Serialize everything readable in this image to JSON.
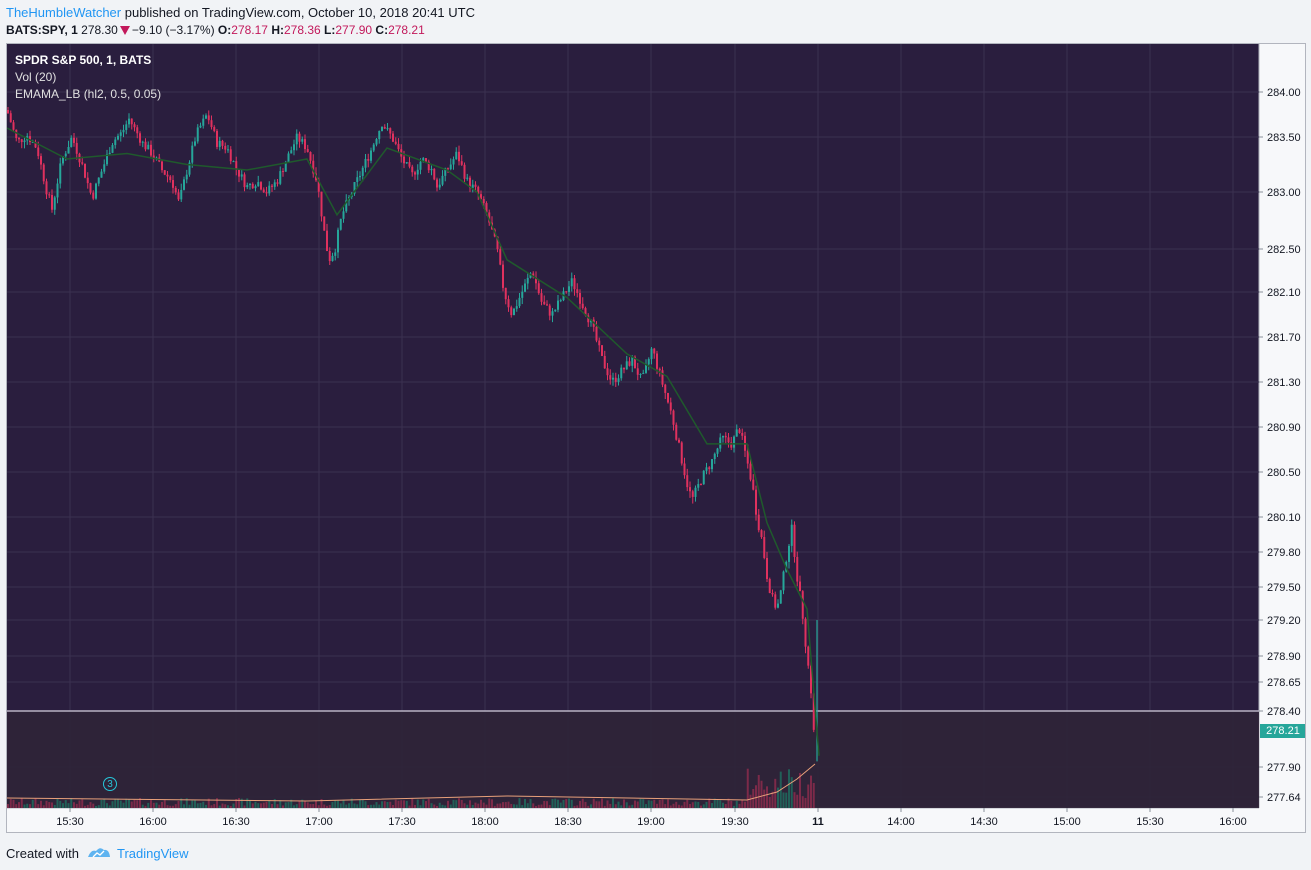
{
  "header": {
    "author": "TheHumbleWatcher",
    "published_text": " published on TradingView.com, October 10, 2018 20:41 UTC"
  },
  "quote": {
    "symbol": "BATS:SPY, 1",
    "last": "278.30",
    "change": "−9.10 (−3.17%)",
    "open_label": "O:",
    "open": "278.17",
    "high_label": "H:",
    "high": "278.36",
    "low_label": "L:",
    "low": "277.90",
    "close_label": "C:",
    "close": "278.21"
  },
  "legend": {
    "title": "SPDR S&P 500, 1, BATS",
    "volume": "Vol (20)",
    "indicator": "EMAMA_LB (hl2, 0.5, 0.05)"
  },
  "price_tag": "278.21",
  "event_marker": "3",
  "footer": {
    "created_with": "Created with",
    "brand": "TradingView"
  },
  "colors": {
    "background": "#2a1e3e",
    "grid": "#3b3150",
    "up": "#26a69a",
    "down": "#e0315e",
    "ema": "#1f5a2c",
    "axis_text": "#131722",
    "price_line": "#b9b3c4"
  },
  "chart_data": {
    "type": "candlestick",
    "y_ticks": [
      "284.00",
      "283.50",
      "283.00",
      "282.50",
      "282.10",
      "281.70",
      "281.30",
      "280.90",
      "280.50",
      "280.10",
      "279.80",
      "279.50",
      "279.20",
      "278.90",
      "278.65",
      "278.40",
      "277.90",
      "277.64"
    ],
    "x_ticks": [
      "15:30",
      "16:00",
      "16:30",
      "17:00",
      "17:30",
      "18:00",
      "18:30",
      "19:00",
      "19:30",
      "11",
      "14:00",
      "14:30",
      "15:00",
      "15:30",
      "16:00"
    ],
    "ylim": [
      277.62,
      284.15
    ],
    "price_line": 278.4,
    "series": [
      {
        "name": "SPY",
        "path": [
          [
            0,
            283.8
          ],
          [
            10,
            283.45
          ],
          [
            20,
            283.52
          ],
          [
            30,
            283.4
          ],
          [
            40,
            283.0
          ],
          [
            45,
            282.85
          ],
          [
            55,
            283.3
          ],
          [
            65,
            283.5
          ],
          [
            75,
            283.25
          ],
          [
            85,
            282.95
          ],
          [
            95,
            283.2
          ],
          [
            105,
            283.45
          ],
          [
            115,
            283.55
          ],
          [
            122,
            283.7
          ],
          [
            135,
            283.45
          ],
          [
            145,
            283.35
          ],
          [
            155,
            283.2
          ],
          [
            165,
            283.1
          ],
          [
            172,
            282.9
          ],
          [
            180,
            283.2
          ],
          [
            190,
            283.55
          ],
          [
            200,
            283.75
          ],
          [
            210,
            283.45
          ],
          [
            220,
            283.4
          ],
          [
            230,
            283.2
          ],
          [
            240,
            283.05
          ],
          [
            250,
            283.1
          ],
          [
            260,
            283.0
          ],
          [
            270,
            283.1
          ],
          [
            280,
            283.3
          ],
          [
            290,
            283.5
          ],
          [
            300,
            283.4
          ],
          [
            310,
            283.1
          ],
          [
            318,
            282.6
          ],
          [
            322,
            282.4
          ],
          [
            328,
            282.5
          ],
          [
            335,
            282.8
          ],
          [
            345,
            283.0
          ],
          [
            355,
            283.2
          ],
          [
            365,
            283.4
          ],
          [
            375,
            283.65
          ],
          [
            385,
            283.5
          ],
          [
            395,
            283.3
          ],
          [
            405,
            283.15
          ],
          [
            415,
            283.3
          ],
          [
            425,
            283.2
          ],
          [
            430,
            283.05
          ],
          [
            440,
            283.2
          ],
          [
            450,
            283.35
          ],
          [
            460,
            283.1
          ],
          [
            470,
            283.0
          ],
          [
            480,
            282.8
          ],
          [
            490,
            282.5
          ],
          [
            497,
            282.1
          ],
          [
            505,
            281.9
          ],
          [
            515,
            282.1
          ],
          [
            525,
            282.3
          ],
          [
            535,
            282.0
          ],
          [
            545,
            281.9
          ],
          [
            555,
            282.05
          ],
          [
            565,
            282.2
          ],
          [
            575,
            282.0
          ],
          [
            585,
            281.8
          ],
          [
            595,
            281.5
          ],
          [
            605,
            281.3
          ],
          [
            615,
            281.4
          ],
          [
            625,
            281.5
          ],
          [
            635,
            281.3
          ],
          [
            645,
            281.6
          ],
          [
            655,
            281.3
          ],
          [
            665,
            281.0
          ],
          [
            675,
            280.6
          ],
          [
            680,
            280.4
          ],
          [
            685,
            280.25
          ],
          [
            695,
            280.45
          ],
          [
            705,
            280.6
          ],
          [
            715,
            280.8
          ],
          [
            725,
            280.75
          ],
          [
            732,
            280.9
          ],
          [
            740,
            280.6
          ],
          [
            745,
            280.4
          ],
          [
            750,
            280.1
          ],
          [
            755,
            279.9
          ],
          [
            760,
            279.6
          ],
          [
            765,
            279.4
          ],
          [
            770,
            279.3
          ],
          [
            775,
            279.5
          ],
          [
            780,
            279.8
          ],
          [
            785,
            280.0
          ],
          [
            790,
            279.6
          ],
          [
            795,
            279.3
          ],
          [
            800,
            278.9
          ],
          [
            805,
            278.5
          ],
          [
            807,
            278.17
          ],
          [
            809,
            278.3
          ]
        ]
      },
      {
        "name": "EMA",
        "path": [
          [
            0,
            283.6
          ],
          [
            60,
            283.3
          ],
          [
            120,
            283.35
          ],
          [
            180,
            283.25
          ],
          [
            240,
            283.2
          ],
          [
            300,
            283.3
          ],
          [
            330,
            282.8
          ],
          [
            380,
            283.4
          ],
          [
            440,
            283.2
          ],
          [
            470,
            283.0
          ],
          [
            500,
            282.4
          ],
          [
            560,
            282.05
          ],
          [
            620,
            281.55
          ],
          [
            660,
            281.35
          ],
          [
            700,
            280.75
          ],
          [
            740,
            280.75
          ],
          [
            760,
            280.05
          ],
          [
            780,
            279.65
          ],
          [
            800,
            279.3
          ],
          [
            812,
            278.0
          ]
        ]
      }
    ]
  }
}
